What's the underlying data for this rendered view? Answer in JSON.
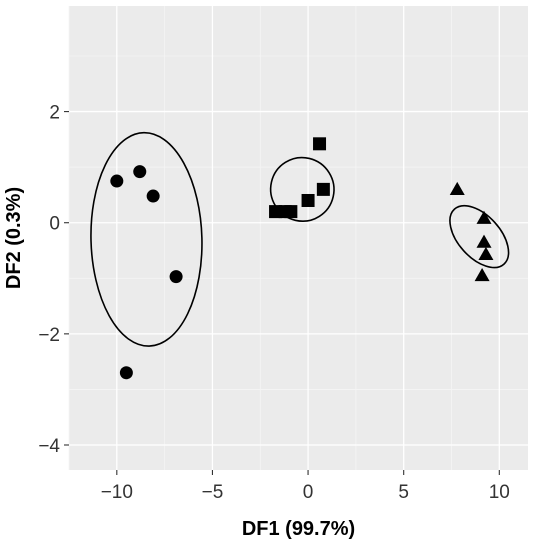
{
  "chart_data": {
    "type": "scatter",
    "title": "",
    "xlabel": "DF1 (99.7%)",
    "ylabel": "DF2 (0.3%)",
    "xlim": [
      -12.5,
      11.5
    ],
    "ylim": [
      -4.45,
      3.9
    ],
    "x_ticks": [
      -10,
      -5,
      0,
      5,
      10
    ],
    "x_tick_labels": [
      "−10",
      "−5",
      "0",
      "5",
      "10"
    ],
    "y_ticks": [
      -4,
      -2,
      0,
      2
    ],
    "y_tick_labels": [
      "−4",
      "−2",
      "0",
      "2"
    ],
    "grid": true,
    "legend": "none",
    "colors": {
      "panel": "#ebebeb",
      "grid_major": "#ffffff",
      "grid_minor": "#f5f5f5",
      "marker": "#000000"
    },
    "series": [
      {
        "marker": "circle",
        "points": [
          {
            "x": -10.0,
            "y": 0.75
          },
          {
            "x": -8.8,
            "y": 0.92
          },
          {
            "x": -8.1,
            "y": 0.48
          },
          {
            "x": -6.9,
            "y": -0.97
          },
          {
            "x": -9.5,
            "y": -2.7
          }
        ],
        "ellipse": {
          "cx": -8.45,
          "cy": -0.3,
          "rx": 2.9,
          "ry": 3.75,
          "angle_deg": -1.5
        }
      },
      {
        "marker": "square",
        "points": [
          {
            "x": -1.7,
            "y": 0.2
          },
          {
            "x": -1.2,
            "y": 0.2
          },
          {
            "x": -0.9,
            "y": 0.2
          },
          {
            "x": 0.0,
            "y": 0.4
          },
          {
            "x": 0.6,
            "y": 1.42
          },
          {
            "x": 0.8,
            "y": 0.6
          }
        ],
        "ellipse": {
          "cx": -0.3,
          "cy": 0.6,
          "rx": 1.65,
          "ry": 1.12,
          "angle_deg": -32
        }
      },
      {
        "marker": "triangle",
        "points": [
          {
            "x": 7.8,
            "y": 0.6
          },
          {
            "x": 9.2,
            "y": 0.08
          },
          {
            "x": 9.2,
            "y": -0.35
          },
          {
            "x": 9.3,
            "y": -0.57
          },
          {
            "x": 9.1,
            "y": -0.95
          }
        ],
        "ellipse": {
          "cx": 8.95,
          "cy": -0.25,
          "rx": 1.1,
          "ry": 1.3,
          "angle_deg": -42
        }
      }
    ]
  }
}
